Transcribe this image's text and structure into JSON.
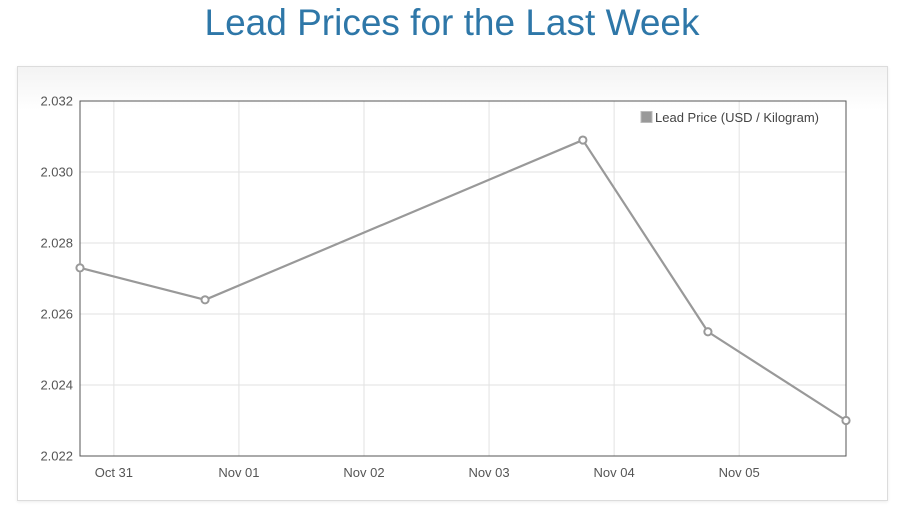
{
  "title": "Lead Prices for the Last Week",
  "chart_data": {
    "type": "line",
    "title": "Lead Prices for the Last Week",
    "xlabel": "",
    "ylabel": "",
    "x_ticks": [
      "Oct 31",
      "Nov 01",
      "Nov 02",
      "Nov 03",
      "Nov 04",
      "Nov 05"
    ],
    "xlim": [
      "2023-10-30 17:30",
      "2023-11-05 20:30"
    ],
    "ylim": [
      2.022,
      2.032
    ],
    "y_ticks": [
      "2.022",
      "2.024",
      "2.026",
      "2.028",
      "2.030",
      "2.032"
    ],
    "grid": true,
    "legend_position": "top-right",
    "series": [
      {
        "name": "Lead Price (USD / Kilogram)",
        "color": "#999999",
        "points": [
          {
            "x": "2023-10-30 17:30",
            "y": 2.0273
          },
          {
            "x": "2023-10-31 17:30",
            "y": 2.0264
          },
          {
            "x": "2023-11-03 18:00",
            "y": 2.0309
          },
          {
            "x": "2023-11-04 18:00",
            "y": 2.0255
          },
          {
            "x": "2023-11-05 20:30",
            "y": 2.023
          }
        ]
      }
    ]
  }
}
